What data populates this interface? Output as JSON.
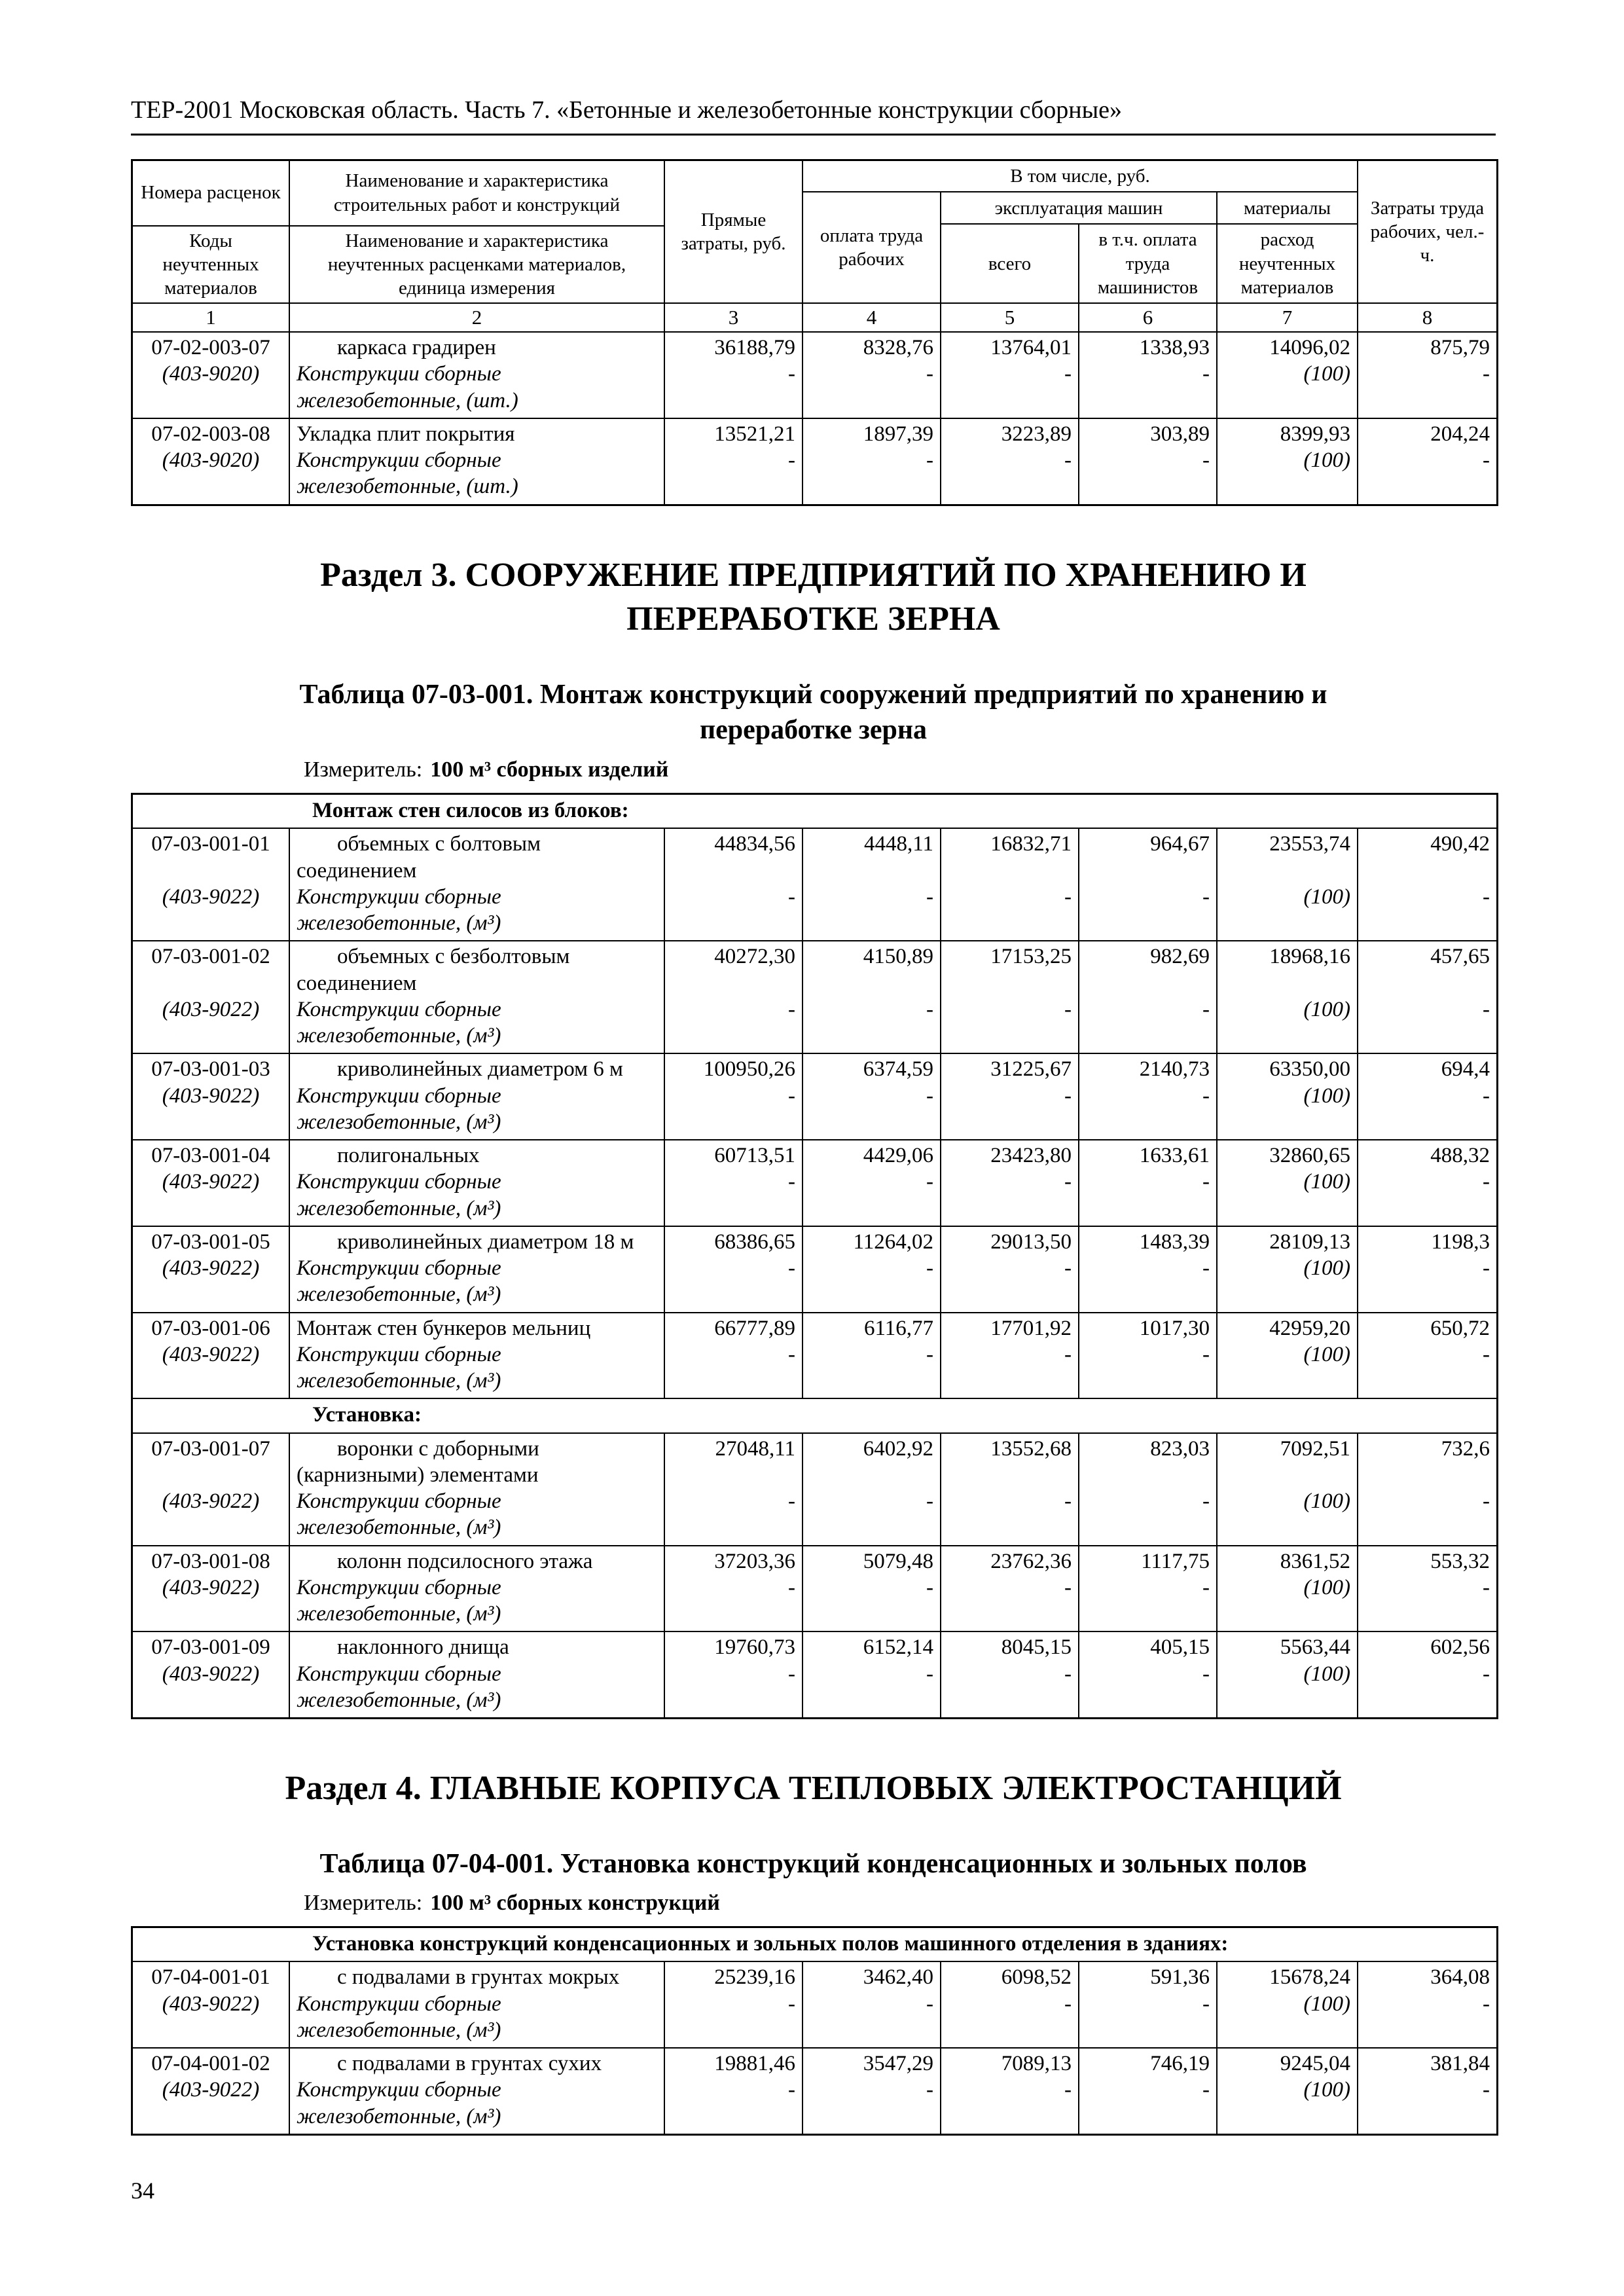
{
  "page": {
    "header_title": "ТЕР-2001 Московская область. Часть 7. «Бетонные и железобетонные конструкции сборные»",
    "page_number": "34"
  },
  "table_header": {
    "col1_top": "Номера расценок",
    "col1_bottom": "Коды неучтенных материалов",
    "col2_top": "Наименование и характеристика строительных работ и конструкций",
    "col2_bottom": "Наименование и характеристика неучтенных расценками материалов, единица измерения",
    "direct_costs": "Прямые затраты, руб.",
    "including": "В том числе, руб.",
    "labor_pay": "оплата труда рабочих",
    "machines": "эксплуатация машин",
    "machines_total": "всего",
    "machines_drivers": "в т.ч. оплата труда машинистов",
    "materials": "материалы",
    "materials_consumption": "расход неучтенных материалов",
    "labor_costs": "Затраты труда рабочих, чел.-ч.",
    "col_numbers": [
      "1",
      "2",
      "3",
      "4",
      "5",
      "6",
      "7",
      "8"
    ]
  },
  "sections": [
    {
      "heading": "Раздел 3. СООРУЖЕНИЕ ПРЕДПРИЯТИЙ ПО ХРАНЕНИЮ И ПЕРЕРАБОТКЕ ЗЕРНА",
      "table_caption": "Таблица 07-03-001. Монтаж конструкций сооружений предприятий по хранению и переработке зерна",
      "measure_label": "Измеритель:",
      "measure_value": "100 м³ сборных изделий"
    },
    {
      "heading": "Раздел 4. ГЛАВНЫЕ КОРПУСА ТЕПЛОВЫХ ЭЛЕКТРОСТАНЦИЙ",
      "table_caption": "Таблица 07-04-001. Установка конструкций конденсационных и зольных полов",
      "measure_label": "Измеритель:",
      "measure_value": "100 м³ сборных конструкций"
    }
  ],
  "tables": [
    {
      "rows": [
        {
          "code": "07-02-003-07",
          "code2": "(403-9020)",
          "name": "каркаса градирен",
          "indent": true,
          "name_sub": "Конструкции сборные железобетонные, (шт.)",
          "values": [
            "36188,79",
            "8328,76",
            "13764,01",
            "1338,93",
            "14096,02",
            "875,79"
          ],
          "sub_values": [
            "-",
            "-",
            "-",
            "-",
            "(100)",
            "-"
          ]
        },
        {
          "code": "07-02-003-08",
          "code2": "(403-9020)",
          "name": "Укладка плит покрытия",
          "indent": false,
          "name_sub": "Конструкции сборные железобетонные, (шт.)",
          "values": [
            "13521,21",
            "1897,39",
            "3223,89",
            "303,89",
            "8399,93",
            "204,24"
          ],
          "sub_values": [
            "-",
            "-",
            "-",
            "-",
            "(100)",
            "-"
          ]
        }
      ]
    },
    {
      "rows": [
        {
          "group": "Монтаж стен силосов из блоков:"
        },
        {
          "code": "07-03-001-01",
          "code2": "(403-9022)",
          "name": "объемных с болтовым соединением",
          "indent": true,
          "name_sub": "Конструкции сборные железобетонные, (м³)",
          "values": [
            "44834,56",
            "4448,11",
            "16832,71",
            "964,67",
            "23553,74",
            "490,42"
          ],
          "sub_values": [
            "-",
            "-",
            "-",
            "-",
            "(100)",
            "-"
          ]
        },
        {
          "code": "07-03-001-02",
          "code2": "(403-9022)",
          "name": "объемных с безболтовым соединением",
          "indent": true,
          "name_sub": "Конструкции сборные железобетонные, (м³)",
          "values": [
            "40272,30",
            "4150,89",
            "17153,25",
            "982,69",
            "18968,16",
            "457,65"
          ],
          "sub_values": [
            "-",
            "-",
            "-",
            "-",
            "(100)",
            "-"
          ]
        },
        {
          "code": "07-03-001-03",
          "code2": "(403-9022)",
          "name": "криволинейных диаметром 6 м",
          "indent": true,
          "name_sub": "Конструкции сборные железобетонные, (м³)",
          "values": [
            "100950,26",
            "6374,59",
            "31225,67",
            "2140,73",
            "63350,00",
            "694,4"
          ],
          "sub_values": [
            "-",
            "-",
            "-",
            "-",
            "(100)",
            "-"
          ]
        },
        {
          "code": "07-03-001-04",
          "code2": "(403-9022)",
          "name": "полигональных",
          "indent": true,
          "name_sub": "Конструкции сборные железобетонные, (м³)",
          "values": [
            "60713,51",
            "4429,06",
            "23423,80",
            "1633,61",
            "32860,65",
            "488,32"
          ],
          "sub_values": [
            "-",
            "-",
            "-",
            "-",
            "(100)",
            "-"
          ]
        },
        {
          "code": "07-03-001-05",
          "code2": "(403-9022)",
          "name": "криволинейных диаметром 18 м",
          "indent": true,
          "name_sub": "Конструкции сборные железобетонные, (м³)",
          "values": [
            "68386,65",
            "11264,02",
            "29013,50",
            "1483,39",
            "28109,13",
            "1198,3"
          ],
          "sub_values": [
            "-",
            "-",
            "-",
            "-",
            "(100)",
            "-"
          ]
        },
        {
          "code": "07-03-001-06",
          "code2": "(403-9022)",
          "name": "Монтаж стен бункеров мельниц",
          "indent": false,
          "name_sub": "Конструкции сборные железобетонные, (м³)",
          "values": [
            "66777,89",
            "6116,77",
            "17701,92",
            "1017,30",
            "42959,20",
            "650,72"
          ],
          "sub_values": [
            "-",
            "-",
            "-",
            "-",
            "(100)",
            "-"
          ]
        },
        {
          "group": "Установка:"
        },
        {
          "code": "07-03-001-07",
          "code2": "(403-9022)",
          "name": "воронки с доборными (карнизными) элементами",
          "indent": true,
          "name_sub": "Конструкции сборные железобетонные, (м³)",
          "values": [
            "27048,11",
            "6402,92",
            "13552,68",
            "823,03",
            "7092,51",
            "732,6"
          ],
          "sub_values": [
            "-",
            "-",
            "-",
            "-",
            "(100)",
            "-"
          ]
        },
        {
          "code": "07-03-001-08",
          "code2": "(403-9022)",
          "name": "колонн подсилосного этажа",
          "indent": true,
          "name_sub": "Конструкции сборные железобетонные, (м³)",
          "values": [
            "37203,36",
            "5079,48",
            "23762,36",
            "1117,75",
            "8361,52",
            "553,32"
          ],
          "sub_values": [
            "-",
            "-",
            "-",
            "-",
            "(100)",
            "-"
          ]
        },
        {
          "code": "07-03-001-09",
          "code2": "(403-9022)",
          "name": "наклонного днища",
          "indent": true,
          "name_sub": "Конструкции сборные железобетонные, (м³)",
          "values": [
            "19760,73",
            "6152,14",
            "8045,15",
            "405,15",
            "5563,44",
            "602,56"
          ],
          "sub_values": [
            "-",
            "-",
            "-",
            "-",
            "(100)",
            "-"
          ]
        }
      ]
    },
    {
      "rows": [
        {
          "group": "Установка конструкций конденсационных и зольных полов машинного отделения в зданиях:"
        },
        {
          "code": "07-04-001-01",
          "code2": "(403-9022)",
          "name": "с подвалами в грунтах мокрых",
          "indent": true,
          "name_sub": "Конструкции сборные железобетонные, (м³)",
          "values": [
            "25239,16",
            "3462,40",
            "6098,52",
            "591,36",
            "15678,24",
            "364,08"
          ],
          "sub_values": [
            "-",
            "-",
            "-",
            "-",
            "(100)",
            "-"
          ]
        },
        {
          "code": "07-04-001-02",
          "code2": "(403-9022)",
          "name": "с подвалами в грунтах сухих",
          "indent": true,
          "name_sub": "Конструкции сборные железобетонные, (м³)",
          "values": [
            "19881,46",
            "3547,29",
            "7089,13",
            "746,19",
            "9245,04",
            "381,84"
          ],
          "sub_values": [
            "-",
            "-",
            "-",
            "-",
            "(100)",
            "-"
          ]
        }
      ]
    }
  ]
}
